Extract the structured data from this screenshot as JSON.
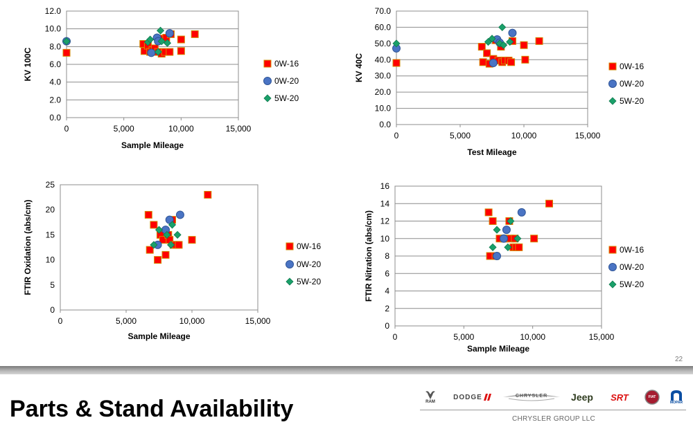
{
  "slide": {
    "number": "22",
    "title": "Parts & Stand Availability",
    "corp_name": "CHRYSLER GROUP LLC",
    "brands": [
      "RAM",
      "DODGE",
      "CHRYSLER",
      "Jeep",
      "SRT",
      "FIAT",
      "MOPAR"
    ]
  },
  "series_styles": {
    "0W-16": {
      "marker": "square",
      "color": "#ff0000",
      "stroke": "#d28a00"
    },
    "0W-20": {
      "marker": "circle",
      "color": "#4a74c4",
      "stroke": "#2f5597"
    },
    "5W-20": {
      "marker": "diamond",
      "color": "#1aa06a",
      "stroke": "#0f7a4e"
    }
  },
  "chart_data": [
    {
      "id": "kv100",
      "type": "scatter",
      "title": "",
      "xlabel": "Sample Mileage",
      "ylabel": "KV 100C",
      "xlim": [
        0,
        15000
      ],
      "ylim": [
        0,
        12
      ],
      "xticks": [
        "0",
        "5,000",
        "10,000",
        "15,000"
      ],
      "yticks": [
        "0.0",
        "2.0",
        "4.0",
        "6.0",
        "8.0",
        "10.0",
        "12.0"
      ],
      "grid": "horizontal",
      "legend": "right",
      "series": [
        {
          "name": "0W-16",
          "points": [
            [
              0,
              7.3
            ],
            [
              6700,
              8.3
            ],
            [
              6800,
              7.5
            ],
            [
              7100,
              8.1
            ],
            [
              7300,
              7.4
            ],
            [
              7500,
              7.6
            ],
            [
              7700,
              7.8
            ],
            [
              8000,
              7.4
            ],
            [
              8100,
              8.9
            ],
            [
              8300,
              7.2
            ],
            [
              8600,
              7.4
            ],
            [
              8700,
              9.0
            ],
            [
              9000,
              7.4
            ],
            [
              9100,
              9.4
            ],
            [
              10000,
              8.8
            ],
            [
              10000,
              7.5
            ],
            [
              11200,
              9.4
            ]
          ]
        },
        {
          "name": "0W-20",
          "points": [
            [
              0,
              8.6
            ],
            [
              7400,
              7.3
            ],
            [
              7900,
              9.0
            ],
            [
              8000,
              8.6
            ],
            [
              9000,
              9.5
            ]
          ]
        },
        {
          "name": "5W-20",
          "points": [
            [
              0,
              8.6
            ],
            [
              7100,
              8.5
            ],
            [
              7300,
              8.8
            ],
            [
              8000,
              7.4
            ],
            [
              8200,
              9.8
            ],
            [
              8300,
              8.6
            ],
            [
              8800,
              8.4
            ]
          ]
        }
      ]
    },
    {
      "id": "kv40",
      "type": "scatter",
      "title": "",
      "xlabel": "Test Mileage",
      "ylabel": "KV 40C",
      "xlim": [
        0,
        15000
      ],
      "ylim": [
        0,
        70
      ],
      "xticks": [
        "0",
        "5,000",
        "10,000",
        "15,000"
      ],
      "yticks": [
        "0.0",
        "10.0",
        "20.0",
        "30.0",
        "40.0",
        "50.0",
        "60.0",
        "70.0"
      ],
      "grid": "horizontal",
      "legend": "right",
      "series": [
        {
          "name": "0W-16",
          "points": [
            [
              0,
              38
            ],
            [
              6700,
              48
            ],
            [
              6800,
              38.5
            ],
            [
              7100,
              44
            ],
            [
              7300,
              37.5
            ],
            [
              7600,
              40.5
            ],
            [
              7800,
              52
            ],
            [
              8000,
              39.5
            ],
            [
              8200,
              48
            ],
            [
              8300,
              38.5
            ],
            [
              8500,
              39.5
            ],
            [
              8800,
              39.5
            ],
            [
              9000,
              38.5
            ],
            [
              9100,
              51.5
            ],
            [
              10000,
              49
            ],
            [
              10100,
              40
            ],
            [
              11200,
              51.5
            ]
          ]
        },
        {
          "name": "0W-20",
          "points": [
            [
              0,
              47
            ],
            [
              7600,
              38
            ],
            [
              7900,
              52.5
            ],
            [
              8100,
              50.5
            ],
            [
              9100,
              56.5
            ]
          ]
        },
        {
          "name": "5W-20",
          "points": [
            [
              0,
              50
            ],
            [
              7200,
              51
            ],
            [
              7500,
              53
            ],
            [
              8100,
              50
            ],
            [
              8300,
              60
            ],
            [
              8400,
              49
            ],
            [
              8900,
              51
            ]
          ]
        }
      ]
    },
    {
      "id": "ftir-ox",
      "type": "scatter",
      "title": "",
      "xlabel": "Sample Mileage",
      "ylabel": "FTIR Oxidation (abs/cm)",
      "xlim": [
        0,
        15000
      ],
      "ylim": [
        0,
        25
      ],
      "xticks": [
        "0",
        "5,000",
        "10,000",
        "15,000"
      ],
      "yticks": [
        "0",
        "5",
        "10",
        "15",
        "20",
        "25"
      ],
      "grid": "none",
      "legend": "right",
      "series": [
        {
          "name": "0W-16",
          "points": [
            [
              6700,
              19
            ],
            [
              6800,
              12
            ],
            [
              7100,
              17
            ],
            [
              7400,
              10
            ],
            [
              7600,
              15
            ],
            [
              7800,
              14
            ],
            [
              8000,
              11
            ],
            [
              8200,
              15
            ],
            [
              8300,
              14
            ],
            [
              8500,
              18
            ],
            [
              8600,
              13
            ],
            [
              8800,
              13
            ],
            [
              9000,
              13
            ],
            [
              10000,
              14
            ],
            [
              11200,
              23
            ]
          ]
        },
        {
          "name": "0W-20",
          "points": [
            [
              7400,
              13
            ],
            [
              8000,
              16
            ],
            [
              8300,
              18
            ],
            [
              9100,
              19
            ]
          ]
        },
        {
          "name": "5W-20",
          "points": [
            [
              7100,
              13
            ],
            [
              7500,
              16
            ],
            [
              8100,
              15
            ],
            [
              8400,
              13
            ],
            [
              8500,
              17
            ],
            [
              8900,
              15
            ]
          ]
        }
      ]
    },
    {
      "id": "ftir-nit",
      "type": "scatter",
      "title": "",
      "xlabel": "Sample Mileage",
      "ylabel": "FTIR Nitration (abs/cm)",
      "xlim": [
        0,
        15000
      ],
      "ylim": [
        0,
        16
      ],
      "xticks": [
        "0",
        "5,000",
        "10,000",
        "15,000"
      ],
      "yticks": [
        "0",
        "2",
        "4",
        "6",
        "8",
        "10",
        "12",
        "14",
        "16"
      ],
      "grid": "horizontal",
      "legend": "right",
      "series": [
        {
          "name": "0W-16",
          "points": [
            [
              6800,
              13
            ],
            [
              6900,
              8
            ],
            [
              7100,
              12
            ],
            [
              7300,
              8
            ],
            [
              7600,
              10
            ],
            [
              7900,
              10
            ],
            [
              8000,
              10
            ],
            [
              8300,
              12
            ],
            [
              8400,
              10
            ],
            [
              8600,
              9
            ],
            [
              8700,
              10
            ],
            [
              8800,
              9
            ],
            [
              9000,
              9
            ],
            [
              10100,
              10
            ],
            [
              11200,
              14
            ]
          ]
        },
        {
          "name": "0W-20",
          "points": [
            [
              7400,
              8
            ],
            [
              7900,
              10
            ],
            [
              8100,
              11
            ],
            [
              9200,
              13
            ]
          ]
        },
        {
          "name": "5W-20",
          "points": [
            [
              7100,
              9
            ],
            [
              7400,
              11
            ],
            [
              8200,
              9
            ],
            [
              8400,
              12
            ],
            [
              8900,
              10
            ]
          ]
        }
      ]
    }
  ]
}
